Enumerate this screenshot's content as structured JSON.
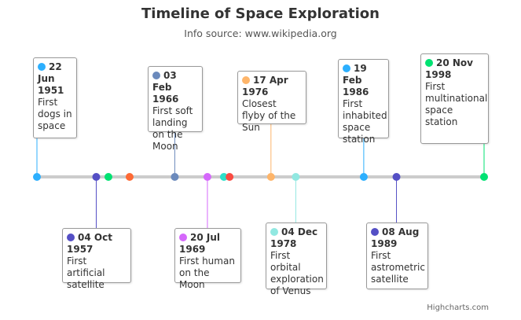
{
  "chart_data": {
    "type": "timeline",
    "title": "Timeline of Space Exploration",
    "subtitle": "Info source: www.wikipedia.org",
    "credits": "Highcharts.com",
    "line_color": "#cccccc",
    "xlim": [
      1951.47,
      1998.89
    ],
    "events": [
      {
        "x": 1951.47,
        "date": "22 Jun 1951",
        "description": "First dogs in space",
        "color": "#2caffe"
      },
      {
        "x": 1957.76,
        "date": "04 Oct 1957",
        "description": "First artificial satellite",
        "color": "#544fc5"
      },
      {
        "x": 1959.05,
        "color": "#00e272"
      },
      {
        "x": 1961.3,
        "color": "#fe6a35"
      },
      {
        "x": 1966.09,
        "date": "03 Feb 1966",
        "description": "First soft landing on the Moon",
        "color": "#6b8abc"
      },
      {
        "x": 1969.55,
        "date": "20 Jul 1969",
        "description": "First human on the Moon",
        "color": "#d568fb"
      },
      {
        "x": 1971.3,
        "color": "#2ee0ca"
      },
      {
        "x": 1971.9,
        "color": "#fa4b42"
      },
      {
        "x": 1976.29,
        "date": "17 Apr 1976",
        "description": "Closest flyby of the Sun",
        "color": "#feb56a"
      },
      {
        "x": 1978.92,
        "date": "04 Dec 1978",
        "description": "First orbital exploration of Venus",
        "color": "#91e8e1"
      },
      {
        "x": 1986.13,
        "date": "19 Feb 1986",
        "description": "First inhabited space station",
        "color": "#2caffe"
      },
      {
        "x": 1989.6,
        "date": "08 Aug 1989",
        "description": "First astrometric satellite",
        "color": "#544fc5"
      },
      {
        "x": 1998.89,
        "date": "20 Nov 1998",
        "description": "First multinational space station",
        "color": "#00e272"
      }
    ]
  }
}
